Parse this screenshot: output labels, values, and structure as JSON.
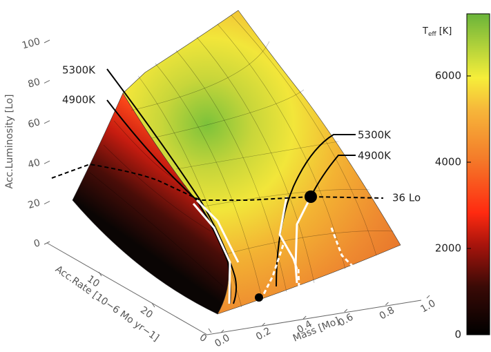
{
  "chart_data": {
    "type": "surface3d",
    "zlabel": "Acc.Luminosity [Lo]",
    "zlim": [
      0,
      100
    ],
    "zticks": [
      0,
      20,
      40,
      60,
      80,
      100
    ],
    "ylabel": "Acc.Rate [10−6 Mo yr−1]",
    "yticks": [
      10,
      20,
      0
    ],
    "xlabel": "Mass [Mo]",
    "xlim": [
      0,
      1
    ],
    "xticks": [
      {
        "value": 0,
        "label": "0.0"
      },
      0.2,
      0.4,
      0.6,
      0.8,
      {
        "value": 1,
        "label": "1.0"
      }
    ],
    "colorbar": {
      "title": "T",
      "title_sub": "eff",
      "title_unit": "[K]",
      "clim": [
        0,
        7440
      ],
      "ticks": [
        0,
        2000,
        4000,
        6000
      ]
    },
    "annotations": [
      "5300K",
      "4900K",
      "5300K",
      "4900K",
      "36 Lo"
    ]
  }
}
